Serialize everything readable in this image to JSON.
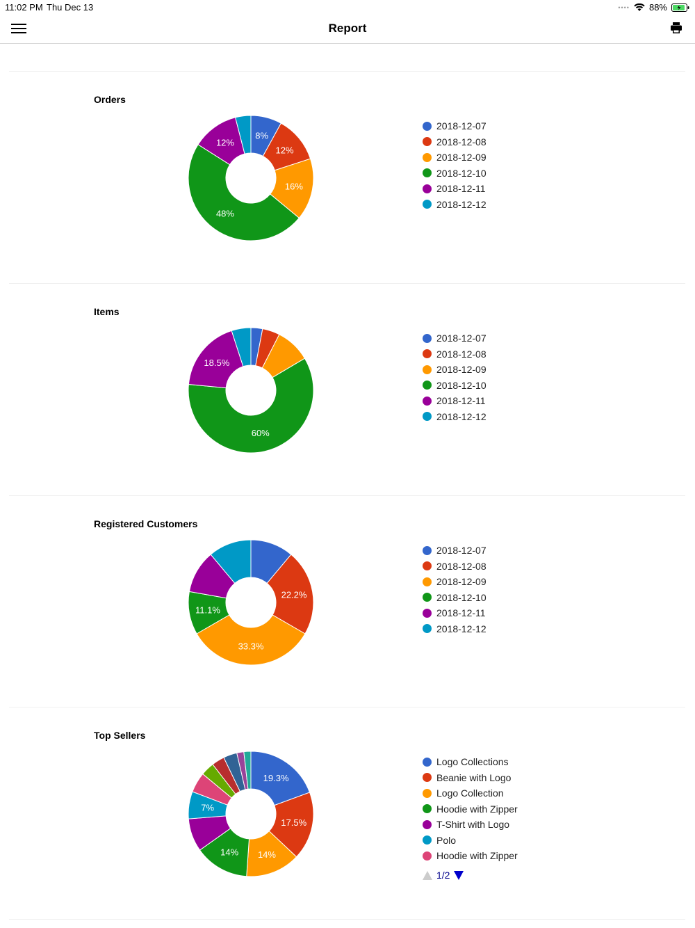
{
  "status_bar": {
    "time": "11:02 PM",
    "date": "Thu Dec 13",
    "battery": "88%"
  },
  "nav": {
    "title": "Report",
    "menu_icon": "hamburger-menu-icon",
    "print_icon": "printer-icon"
  },
  "colors": [
    "#3366cc",
    "#dc3912",
    "#ff9900",
    "#109618",
    "#990099",
    "#0099c6",
    "#dd4477",
    "#66aa00",
    "#b82e2e",
    "#316395",
    "#994499",
    "#22aa99"
  ],
  "sections": [
    {
      "title": "Orders",
      "legend": [
        "2018-12-07",
        "2018-12-08",
        "2018-12-09",
        "2018-12-10",
        "2018-12-11",
        "2018-12-12"
      ],
      "pager": null
    },
    {
      "title": "Items",
      "legend": [
        "2018-12-07",
        "2018-12-08",
        "2018-12-09",
        "2018-12-10",
        "2018-12-11",
        "2018-12-12"
      ],
      "pager": null
    },
    {
      "title": "Registered Customers",
      "legend": [
        "2018-12-07",
        "2018-12-08",
        "2018-12-09",
        "2018-12-10",
        "2018-12-11",
        "2018-12-12"
      ],
      "pager": null
    },
    {
      "title": "Top Sellers",
      "legend": [
        "Logo Collections",
        "Beanie with Logo",
        "Logo Collection",
        "Hoodie with Zipper",
        "T-Shirt with Logo",
        "Polo",
        "Hoodie with Zipper"
      ],
      "pager": "1/2"
    }
  ],
  "chart_data": [
    {
      "type": "pie",
      "title": "Orders",
      "categories": [
        "2018-12-07",
        "2018-12-08",
        "2018-12-09",
        "2018-12-10",
        "2018-12-11",
        "2018-12-12"
      ],
      "values": [
        8,
        12,
        16,
        48,
        12,
        4
      ],
      "labels": [
        "8%",
        "12%",
        "16%",
        "48%",
        "12%",
        ""
      ]
    },
    {
      "type": "pie",
      "title": "Items",
      "categories": [
        "2018-12-07",
        "2018-12-08",
        "2018-12-09",
        "2018-12-10",
        "2018-12-11",
        "2018-12-12"
      ],
      "values": [
        3,
        4.5,
        9,
        60,
        18.5,
        5
      ],
      "labels": [
        "",
        "",
        "",
        "60%",
        "18.5%",
        ""
      ]
    },
    {
      "type": "pie",
      "title": "Registered Customers",
      "categories": [
        "2018-12-07",
        "2018-12-08",
        "2018-12-09",
        "2018-12-10",
        "2018-12-11",
        "2018-12-12"
      ],
      "values": [
        11.1,
        22.2,
        33.3,
        11.1,
        11.1,
        11.1
      ],
      "labels": [
        "",
        "22.2%",
        "33.3%",
        "11.1%",
        "",
        ""
      ]
    },
    {
      "type": "pie",
      "title": "Top Sellers",
      "categories": [
        "Logo Collections",
        "Beanie with Logo",
        "Logo Collection",
        "Hoodie with Zipper",
        "T-Shirt with Logo",
        "Polo",
        "Hoodie with Zipper",
        "",
        "",
        "",
        "",
        ""
      ],
      "values": [
        19.3,
        17.5,
        14,
        14,
        8.5,
        7,
        5.2,
        3.5,
        3.3,
        3.5,
        1.8,
        1.8
      ],
      "labels": [
        "19.3%",
        "17.5%",
        "14%",
        "14%",
        "",
        "7%",
        "",
        "",
        "",
        "",
        "",
        ""
      ]
    }
  ]
}
